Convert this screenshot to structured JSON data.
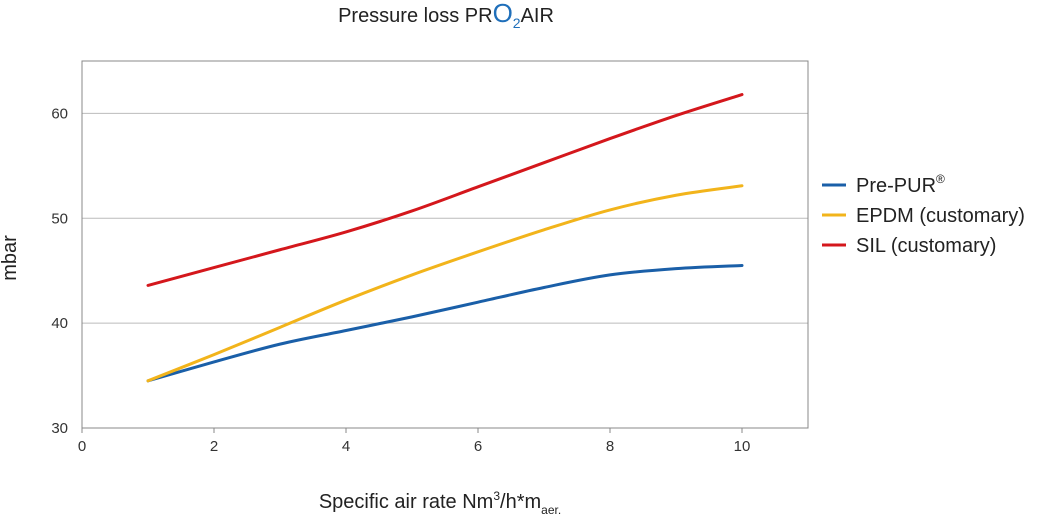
{
  "chart_data": {
    "type": "line",
    "title": {
      "prefix": "Pressure loss PR",
      "o": "O",
      "sub": "2",
      "suffix": "AIR"
    },
    "xlabel": {
      "main": "Specific air rate Nm",
      "sup": "3",
      "mid": "/h*m",
      "sub": "aer."
    },
    "ylabel": "mbar",
    "xlim": [
      0,
      11
    ],
    "ylim": [
      30,
      65
    ],
    "xticks": [
      0,
      2,
      4,
      6,
      8,
      10
    ],
    "yticks": [
      30,
      40,
      50,
      60
    ],
    "grid": true,
    "legend_position": "right",
    "series": [
      {
        "name": "Pre-PUR",
        "name_sup": "®",
        "color": "#1a5fa8",
        "x": [
          1,
          2,
          3,
          4,
          5,
          6,
          7,
          8,
          9,
          10
        ],
        "values": [
          34.5,
          36.3,
          38.0,
          39.3,
          40.6,
          42.0,
          43.4,
          44.6,
          45.2,
          45.5
        ]
      },
      {
        "name": "EPDM (customary)",
        "color": "#f2b41b",
        "x": [
          1,
          2,
          3,
          4,
          5,
          6,
          7,
          8,
          9,
          10
        ],
        "values": [
          34.5,
          37.0,
          39.6,
          42.2,
          44.6,
          46.8,
          48.9,
          50.8,
          52.2,
          53.1
        ]
      },
      {
        "name": "SIL (customary)",
        "color": "#d4171c",
        "x": [
          1,
          2,
          3,
          4,
          5,
          6,
          7,
          8,
          9,
          10
        ],
        "values": [
          43.6,
          45.3,
          47.0,
          48.7,
          50.7,
          53.0,
          55.3,
          57.6,
          59.8,
          61.8
        ]
      }
    ]
  }
}
